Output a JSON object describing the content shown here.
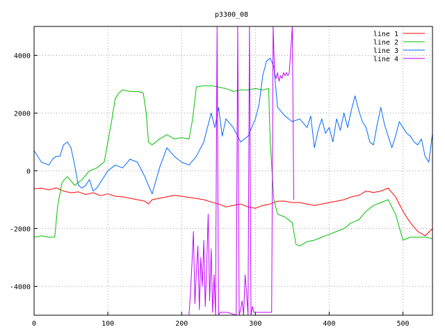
{
  "chart_data": {
    "type": "line",
    "title": "p3300_08",
    "xlabel": "",
    "ylabel": "",
    "xlim": [
      0,
      540
    ],
    "ylim": [
      -5000,
      5000
    ],
    "xticks": [
      0,
      100,
      200,
      300,
      400,
      500
    ],
    "yticks": [
      -4000,
      -2000,
      0,
      2000,
      4000
    ],
    "grid": true,
    "legend_position": "top-right",
    "series": [
      {
        "name": "line 1",
        "color": "#ff0000",
        "points": [
          [
            0,
            -620
          ],
          [
            10,
            -600
          ],
          [
            20,
            -660
          ],
          [
            30,
            -590
          ],
          [
            40,
            -700
          ],
          [
            50,
            -760
          ],
          [
            60,
            -730
          ],
          [
            70,
            -820
          ],
          [
            80,
            -760
          ],
          [
            90,
            -860
          ],
          [
            100,
            -800
          ],
          [
            110,
            -880
          ],
          [
            120,
            -900
          ],
          [
            130,
            -950
          ],
          [
            140,
            -1000
          ],
          [
            150,
            -1050
          ],
          [
            155,
            -1150
          ],
          [
            160,
            -1000
          ],
          [
            170,
            -950
          ],
          [
            180,
            -900
          ],
          [
            190,
            -850
          ],
          [
            200,
            -880
          ],
          [
            210,
            -920
          ],
          [
            220,
            -960
          ],
          [
            230,
            -1000
          ],
          [
            240,
            -1080
          ],
          [
            250,
            -1150
          ],
          [
            260,
            -1250
          ],
          [
            270,
            -1200
          ],
          [
            280,
            -1150
          ],
          [
            290,
            -1250
          ],
          [
            300,
            -1300
          ],
          [
            310,
            -1200
          ],
          [
            320,
            -1150
          ],
          [
            330,
            -1050
          ],
          [
            340,
            -1050
          ],
          [
            350,
            -1100
          ],
          [
            360,
            -1100
          ],
          [
            370,
            -1150
          ],
          [
            380,
            -1200
          ],
          [
            390,
            -1150
          ],
          [
            400,
            -1100
          ],
          [
            410,
            -1050
          ],
          [
            420,
            -1000
          ],
          [
            430,
            -900
          ],
          [
            440,
            -850
          ],
          [
            450,
            -700
          ],
          [
            460,
            -750
          ],
          [
            470,
            -700
          ],
          [
            480,
            -600
          ],
          [
            490,
            -900
          ],
          [
            500,
            -1400
          ],
          [
            510,
            -1800
          ],
          [
            520,
            -2100
          ],
          [
            530,
            -2250
          ],
          [
            540,
            -2000
          ]
        ]
      },
      {
        "name": "line 2",
        "color": "#00c000",
        "points": [
          [
            0,
            -2300
          ],
          [
            10,
            -2250
          ],
          [
            20,
            -2300
          ],
          [
            28,
            -2300
          ],
          [
            32,
            -1200
          ],
          [
            38,
            -400
          ],
          [
            45,
            -200
          ],
          [
            55,
            -500
          ],
          [
            65,
            -300
          ],
          [
            75,
            0
          ],
          [
            85,
            100
          ],
          [
            95,
            300
          ],
          [
            100,
            1000
          ],
          [
            105,
            1700
          ],
          [
            110,
            2500
          ],
          [
            115,
            2700
          ],
          [
            120,
            2800
          ],
          [
            130,
            2750
          ],
          [
            140,
            2750
          ],
          [
            148,
            2700
          ],
          [
            152,
            2000
          ],
          [
            155,
            1000
          ],
          [
            160,
            900
          ],
          [
            170,
            1100
          ],
          [
            180,
            1250
          ],
          [
            190,
            1100
          ],
          [
            200,
            1150
          ],
          [
            210,
            1100
          ],
          [
            215,
            1800
          ],
          [
            220,
            2900
          ],
          [
            230,
            2950
          ],
          [
            240,
            2950
          ],
          [
            250,
            2900
          ],
          [
            260,
            2850
          ],
          [
            270,
            2750
          ],
          [
            280,
            2800
          ],
          [
            290,
            2800
          ],
          [
            300,
            2850
          ],
          [
            310,
            2800
          ],
          [
            318,
            2850
          ],
          [
            320,
            1000
          ],
          [
            325,
            -1000
          ],
          [
            330,
            -1500
          ],
          [
            340,
            -1600
          ],
          [
            350,
            -1800
          ],
          [
            355,
            -2550
          ],
          [
            360,
            -2600
          ],
          [
            370,
            -2450
          ],
          [
            380,
            -2400
          ],
          [
            390,
            -2300
          ],
          [
            400,
            -2200
          ],
          [
            410,
            -2100
          ],
          [
            420,
            -2000
          ],
          [
            430,
            -1800
          ],
          [
            440,
            -1700
          ],
          [
            450,
            -1400
          ],
          [
            460,
            -1200
          ],
          [
            470,
            -1100
          ],
          [
            480,
            -1000
          ],
          [
            490,
            -1500
          ],
          [
            500,
            -2400
          ],
          [
            510,
            -2300
          ],
          [
            520,
            -2300
          ],
          [
            530,
            -2300
          ],
          [
            540,
            -2350
          ]
        ]
      },
      {
        "name": "line 3",
        "color": "#0066ff",
        "points": [
          [
            0,
            700
          ],
          [
            10,
            300
          ],
          [
            20,
            200
          ],
          [
            25,
            400
          ],
          [
            30,
            500
          ],
          [
            35,
            500
          ],
          [
            40,
            900
          ],
          [
            45,
            1000
          ],
          [
            50,
            800
          ],
          [
            55,
            200
          ],
          [
            60,
            -500
          ],
          [
            65,
            -600
          ],
          [
            70,
            -500
          ],
          [
            75,
            -300
          ],
          [
            80,
            -700
          ],
          [
            85,
            -600
          ],
          [
            90,
            -400
          ],
          [
            95,
            -200
          ],
          [
            100,
            0
          ],
          [
            110,
            200
          ],
          [
            120,
            100
          ],
          [
            130,
            400
          ],
          [
            140,
            300
          ],
          [
            150,
            -200
          ],
          [
            160,
            -800
          ],
          [
            170,
            100
          ],
          [
            180,
            800
          ],
          [
            190,
            500
          ],
          [
            200,
            300
          ],
          [
            210,
            200
          ],
          [
            220,
            500
          ],
          [
            230,
            1000
          ],
          [
            240,
            2000
          ],
          [
            245,
            1500
          ],
          [
            250,
            2200
          ],
          [
            255,
            1200
          ],
          [
            260,
            1800
          ],
          [
            270,
            1500
          ],
          [
            280,
            1000
          ],
          [
            290,
            1200
          ],
          [
            300,
            1800
          ],
          [
            305,
            2300
          ],
          [
            310,
            3300
          ],
          [
            315,
            3800
          ],
          [
            320,
            3900
          ],
          [
            325,
            3600
          ],
          [
            330,
            2200
          ],
          [
            340,
            1900
          ],
          [
            350,
            1700
          ],
          [
            360,
            1800
          ],
          [
            370,
            1500
          ],
          [
            375,
            1900
          ],
          [
            380,
            800
          ],
          [
            385,
            1400
          ],
          [
            390,
            1800
          ],
          [
            395,
            1300
          ],
          [
            400,
            1500
          ],
          [
            405,
            1000
          ],
          [
            410,
            1800
          ],
          [
            415,
            1400
          ],
          [
            420,
            2000
          ],
          [
            425,
            1500
          ],
          [
            430,
            2100
          ],
          [
            435,
            2600
          ],
          [
            440,
            2100
          ],
          [
            445,
            1700
          ],
          [
            450,
            1500
          ],
          [
            455,
            1000
          ],
          [
            460,
            900
          ],
          [
            465,
            1600
          ],
          [
            470,
            2200
          ],
          [
            475,
            1600
          ],
          [
            480,
            1200
          ],
          [
            485,
            800
          ],
          [
            490,
            1200
          ],
          [
            495,
            1700
          ],
          [
            500,
            1500
          ],
          [
            505,
            1300
          ],
          [
            510,
            1200
          ],
          [
            515,
            1000
          ],
          [
            520,
            900
          ],
          [
            525,
            1100
          ],
          [
            530,
            500
          ],
          [
            535,
            300
          ],
          [
            540,
            1300
          ]
        ]
      },
      {
        "name": "line 4",
        "color": "#c000ff",
        "points": [
          [
            210,
            -5000
          ],
          [
            212,
            -4200
          ],
          [
            214,
            -3200
          ],
          [
            216,
            -2100
          ],
          [
            218,
            -4600
          ],
          [
            220,
            -3500
          ],
          [
            222,
            -2600
          ],
          [
            224,
            -4800
          ],
          [
            226,
            -3000
          ],
          [
            228,
            -4000
          ],
          [
            230,
            -2400
          ],
          [
            232,
            -4700
          ],
          [
            234,
            -3300
          ],
          [
            236,
            -1500
          ],
          [
            238,
            -4500
          ],
          [
            240,
            -2700
          ],
          [
            242,
            -4900
          ],
          [
            244,
            -3600
          ],
          [
            246,
            -5000
          ],
          [
            248,
            5000
          ],
          [
            250,
            -5000
          ],
          [
            252,
            -4900
          ],
          [
            262,
            -4900
          ],
          [
            274,
            -5000
          ],
          [
            276,
            5000
          ],
          [
            278,
            -5000
          ],
          [
            280,
            -4800
          ],
          [
            282,
            -4500
          ],
          [
            284,
            -5000
          ],
          [
            286,
            -3600
          ],
          [
            288,
            -4200
          ],
          [
            290,
            -5000
          ],
          [
            292,
            5000
          ],
          [
            294,
            -5000
          ],
          [
            296,
            -4700
          ],
          [
            298,
            -4900
          ],
          [
            310,
            -4900
          ],
          [
            322,
            -4900
          ],
          [
            324,
            5000
          ],
          [
            326,
            3400
          ],
          [
            328,
            3200
          ],
          [
            330,
            3400
          ],
          [
            332,
            3100
          ],
          [
            334,
            3300
          ],
          [
            336,
            3200
          ],
          [
            338,
            3400
          ],
          [
            340,
            3300
          ],
          [
            342,
            3400
          ],
          [
            344,
            3300
          ],
          [
            346,
            3400
          ],
          [
            350,
            5000
          ],
          [
            352,
            -1000
          ]
        ]
      }
    ]
  }
}
